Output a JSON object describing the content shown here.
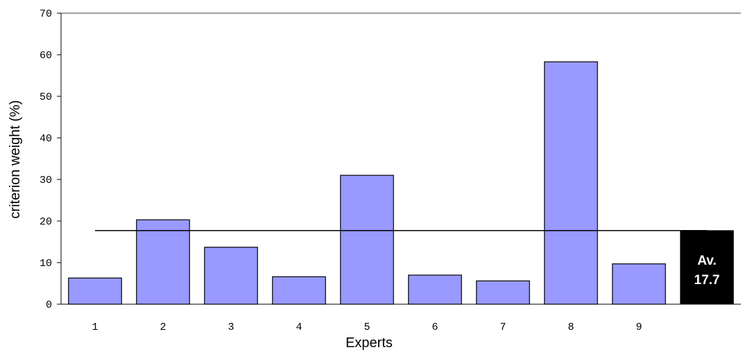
{
  "chart_data": {
    "type": "bar",
    "categories": [
      "1",
      "2",
      "3",
      "4",
      "5",
      "6",
      "7",
      "8",
      "9"
    ],
    "values": [
      6.3,
      20.3,
      13.7,
      6.6,
      31.0,
      7.0,
      5.6,
      58.3,
      9.7
    ],
    "bar_color": "#9999ff",
    "average": {
      "value": 17.7,
      "label_line1": "Av.",
      "label_line2": "17.7",
      "color": "#000000"
    },
    "xlabel": "Experts",
    "ylabel": "criterion weight (%)",
    "ylim": [
      0,
      70
    ],
    "yticks": [
      "0",
      "10",
      "20",
      "30",
      "40",
      "50",
      "60",
      "70"
    ],
    "grid": false
  }
}
